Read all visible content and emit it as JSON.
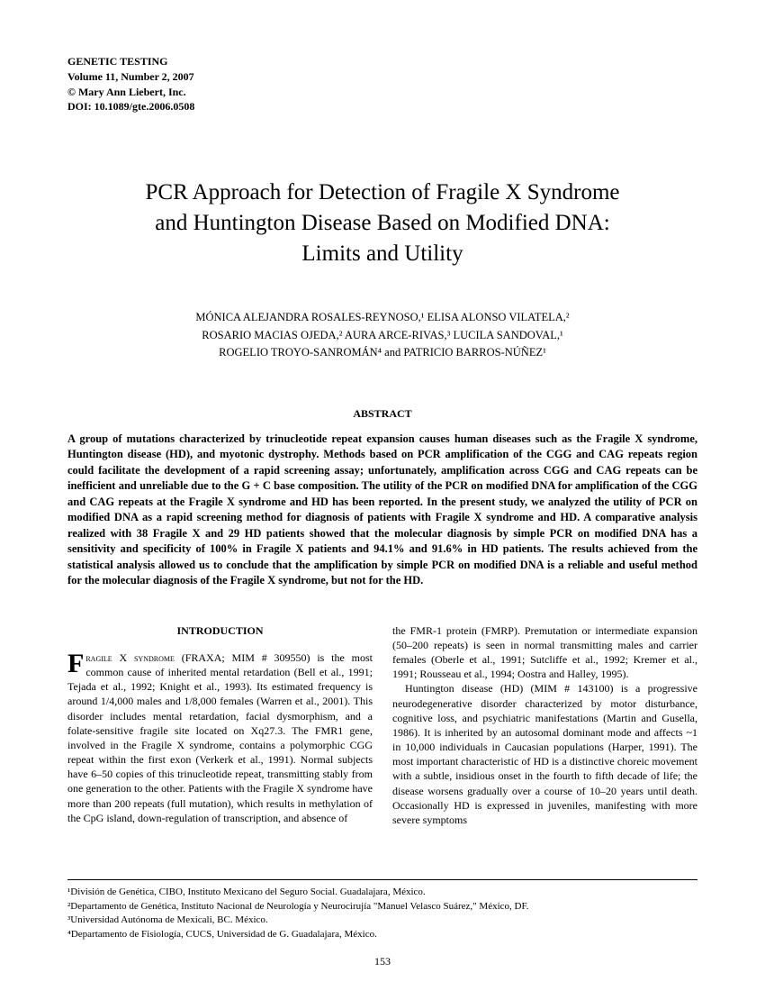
{
  "journal": {
    "name": "GENETIC TESTING",
    "issue": "Volume 11, Number 2, 2007",
    "copyright": "© Mary Ann Liebert, Inc.",
    "doi": "DOI: 10.1089/gte.2006.0508"
  },
  "title_line1": "PCR Approach for Detection of Fragile X Syndrome",
  "title_line2": "and Huntington Disease Based on Modified DNA:",
  "title_line3": "Limits and Utility",
  "authors_line1": "MÓNICA ALEJANDRA ROSALES-REYNOSO,¹ ELISA ALONSO VILATELA,²",
  "authors_line2": "ROSARIO MACIAS OJEDA,² AURA ARCE-RIVAS,³ LUCILA SANDOVAL,¹",
  "authors_line3": "ROGELIO TROYO-SANROMÁN⁴ and PATRICIO BARROS-NÚÑEZ¹",
  "abstract_heading": "ABSTRACT",
  "abstract_text": "A group of mutations characterized by trinucleotide repeat expansion causes human diseases such as the Fragile X syndrome, Huntington disease (HD), and myotonic dystrophy. Methods based on PCR amplification of the CGG and CAG repeats region could facilitate the development of a rapid screening assay; unfortunately, amplification across CGG and CAG repeats can be inefficient and unreliable due to the G + C base composition. The utility of the PCR on modified DNA for amplification of the CGG and CAG repeats at the Fragile X syndrome and HD has been reported. In the present study, we analyzed the utility of PCR on modified DNA as a rapid screening method for diagnosis of patients with Fragile X syndrome and HD. A comparative analysis realized with 38 Fragile X and 29 HD patients showed that the molecular diagnosis by simple PCR on modified DNA has a sensitivity and specificity of 100% in Fragile X patients and 94.1% and 91.6% in HD patients. The results achieved from the statistical analysis allowed us to conclude that the amplification by simple PCR on modified DNA is a reliable and useful method for the molecular diagnosis of the Fragile X syndrome, but not for the HD.",
  "introduction_heading": "INTRODUCTION",
  "intro_dropcap": "F",
  "intro_smallcaps": "ragile X syndrome",
  "intro_col1": " (FRAXA; MIM # 309550) is the most common cause of inherited mental retardation (Bell et al., 1991; Tejada et al., 1992; Knight et al., 1993). Its estimated frequency is around 1/4,000 males and 1/8,000 females (Warren et al., 2001). This disorder includes mental retardation, facial dysmorphism, and a folate-sensitive fragile site located on Xq27.3. The FMR1 gene, involved in the Fragile X syndrome, contains a polymorphic CGG repeat within the first exon (Verkerk et al., 1991). Normal subjects have 6–50 copies of this trinucleotide repeat, transmitting stably from one generation to the other. Patients with the Fragile X syndrome have more than 200 repeats (full mutation), which results in methylation of the CpG island, down-regulation of transcription, and absence of",
  "intro_col2_p1": "the FMR-1 protein (FMRP). Premutation or intermediate expansion (50–200 repeats) is seen in normal transmitting males and carrier females (Oberle et al., 1991; Sutcliffe et al., 1992; Kremer et al., 1991; Rousseau et al., 1994; Oostra and Halley, 1995).",
  "intro_col2_p2": "Huntington disease (HD) (MIM # 143100) is a progressive neurodegenerative disorder characterized by motor disturbance, cognitive loss, and psychiatric manifestations (Martin and Gusella, 1986). It is inherited by an autosomal dominant mode and affects ~1 in 10,000 individuals in Caucasian populations (Harper, 1991). The most important characteristic of HD is a distinctive choreic movement with a subtle, insidious onset in the fourth to fifth decade of life; the disease worsens gradually over a course of 10–20 years until death. Occasionally HD is expressed in juveniles, manifesting with more severe symptoms",
  "affiliations": {
    "a1": "¹División de Genética, CIBO, Instituto Mexicano del Seguro Social. Guadalajara, México.",
    "a2": "²Departamento de Genética, Instituto Nacional de Neurología y Neurocirujía \"Manuel Velasco Suárez,\" México, DF.",
    "a3": "³Universidad Autónoma de Mexicali, BC. México.",
    "a4": "⁴Departamento de Fisiología, CUCS, Universidad de G. Guadalajara, México."
  },
  "page_number": "153",
  "style": {
    "background_color": "#ffffff",
    "text_color": "#000000",
    "title_fontsize": 25,
    "body_fontsize": 12,
    "journal_fontsize": 12,
    "abstract_fontsize": 12.5,
    "font_family": "Times New Roman"
  }
}
